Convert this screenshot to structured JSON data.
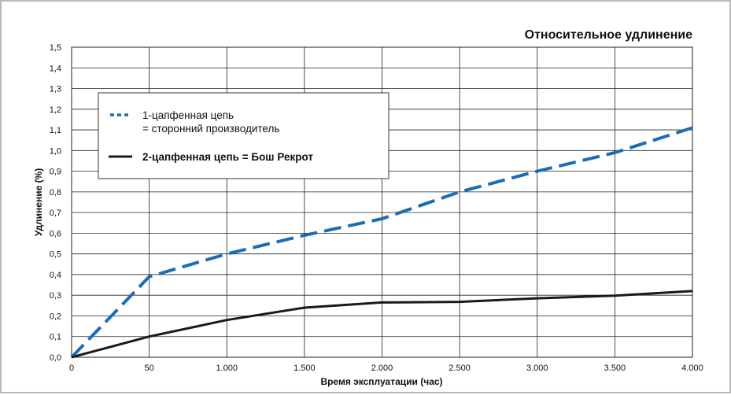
{
  "chart_data": {
    "type": "line",
    "title": "Относительное удлинение",
    "xlabel": "Время эксплуатации (час)",
    "ylabel": "Удлинение (%)",
    "x_tick_labels": [
      "0",
      "50",
      "1.000",
      "1.500",
      "2.000",
      "2.500",
      "3.000",
      "3.500",
      "4.000"
    ],
    "y_tick_labels": [
      "0,0",
      "0,1",
      "0,2",
      "0,3",
      "0,4",
      "0,5",
      "0,6",
      "0,7",
      "0,8",
      "0,9",
      "1,0",
      "1,1",
      "1,2",
      "1,3",
      "1,4",
      "1,5"
    ],
    "ylim": [
      0,
      1.5
    ],
    "grid": true,
    "legend_position": "top-left",
    "series": [
      {
        "name_lines": [
          "1-цапфенная цепь",
          "= сторонний производитель"
        ],
        "color": "#1a6db5",
        "style": "dashed",
        "points": [
          [
            "0",
            0.0
          ],
          [
            "50",
            0.39
          ],
          [
            "1.000",
            0.5
          ],
          [
            "1.500",
            0.59
          ],
          [
            "2.000",
            0.67
          ],
          [
            "2.500",
            0.8
          ],
          [
            "3.000",
            0.9
          ],
          [
            "3.500",
            0.99
          ],
          [
            "4.000",
            1.11
          ]
        ]
      },
      {
        "name_lines": [
          "2-цапфенная цепь = Бош Рекрот"
        ],
        "color": "#1a1a1a",
        "style": "solid",
        "points": [
          [
            "0",
            0.0
          ],
          [
            "50",
            0.1
          ],
          [
            "1.000",
            0.18
          ],
          [
            "1.500",
            0.24
          ],
          [
            "2.000",
            0.265
          ],
          [
            "2.500",
            0.268
          ],
          [
            "3.000",
            0.285
          ],
          [
            "3.500",
            0.298
          ],
          [
            "4.000",
            0.32
          ]
        ]
      }
    ]
  }
}
